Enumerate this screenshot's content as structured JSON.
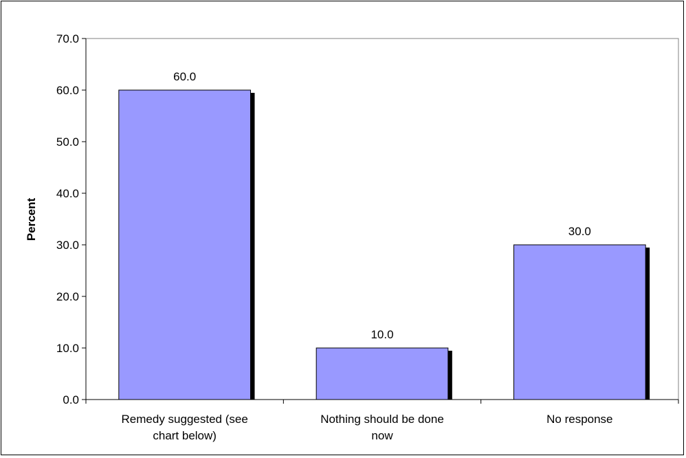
{
  "chart_data": {
    "type": "bar",
    "categories": [
      "Remedy suggested (see chart below)",
      "Nothing should be done now",
      "No response"
    ],
    "category_lines": [
      [
        "Remedy suggested (see",
        "chart below)"
      ],
      [
        "Nothing should be done",
        "now"
      ],
      [
        "No response"
      ]
    ],
    "values": [
      60.0,
      10.0,
      30.0
    ],
    "value_labels": [
      "60.0",
      "10.0",
      "30.0"
    ],
    "title": "",
    "xlabel": "",
    "ylabel": "Percent",
    "ylim": [
      0,
      70
    ],
    "yticks": [
      "0.0",
      "10.0",
      "20.0",
      "30.0",
      "40.0",
      "50.0",
      "60.0",
      "70.0"
    ],
    "grid": false,
    "legend": "none",
    "colors": {
      "bar_fill": "#9999ff",
      "bar_shadow": "#000000",
      "axis": "#000000"
    }
  }
}
